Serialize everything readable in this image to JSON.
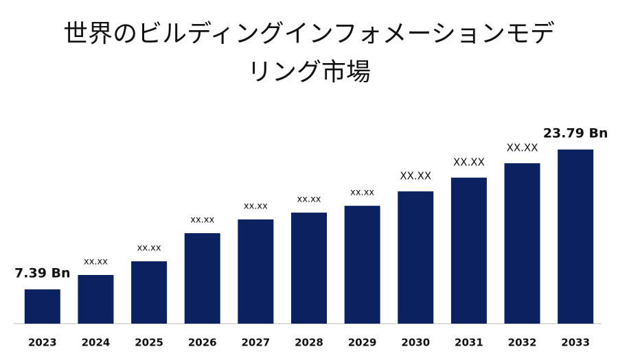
{
  "chart_data": {
    "type": "bar",
    "title": "世界のビルディングインフォメーションモデリング市場",
    "categories": [
      "2023",
      "2024",
      "2025",
      "2026",
      "2027",
      "2028",
      "2029",
      "2030",
      "2031",
      "2032",
      "2033"
    ],
    "values": [
      7.39,
      9.08,
      10.68,
      13.98,
      15.59,
      16.39,
      17.19,
      18.88,
      20.49,
      22.18,
      23.79
    ],
    "value_labels": [
      "7.39 Bn",
      "xx.xx",
      "xx.xx",
      "xx.xx",
      "xx.xx",
      "xx.xx",
      "xx.xx",
      "XX.XX",
      "XX.XX",
      "XX.XX",
      "23.79 Bn"
    ],
    "color": "#0b2160",
    "ylim": [
      3.37,
      25
    ]
  }
}
